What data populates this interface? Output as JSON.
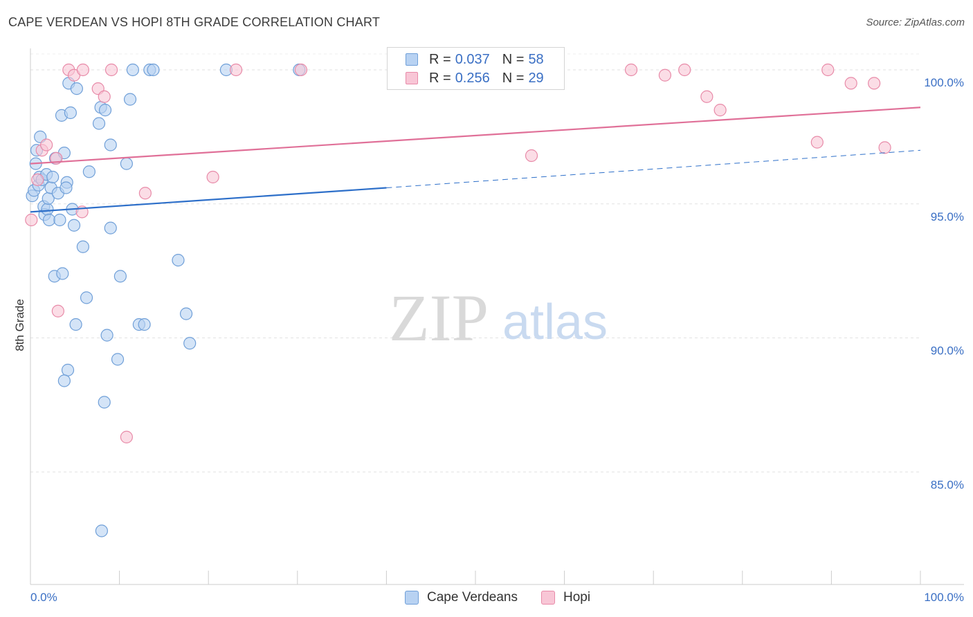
{
  "title": "CAPE VERDEAN VS HOPI 8TH GRADE CORRELATION CHART",
  "source": "Source: ZipAtlas.com",
  "watermark": {
    "zip": "ZIP",
    "atlas": "atlas"
  },
  "legend": {
    "rows": [
      {
        "r_label": "R =",
        "r_value": "0.037",
        "n_label": "N =",
        "n_value": "58",
        "fill": "#b8d2f2",
        "stroke": "#6f9fd8"
      },
      {
        "r_label": "R =",
        "r_value": "0.256",
        "n_label": "N =",
        "n_value": "29",
        "fill": "#f8c6d6",
        "stroke": "#e88aa8"
      }
    ]
  },
  "bottom_legend": [
    {
      "label": "Cape Verdeans",
      "fill": "#b8d2f2",
      "stroke": "#6f9fd8"
    },
    {
      "label": "Hopi",
      "fill": "#f8c6d6",
      "stroke": "#e88aa8"
    }
  ],
  "chart_data": {
    "type": "scatter",
    "title": "CAPE VERDEAN VS HOPI 8TH GRADE CORRELATION CHART",
    "xlabel": "",
    "ylabel": "8th Grade",
    "xlim": [
      0,
      100
    ],
    "ylim": [
      80.8,
      100.8
    ],
    "x_tick_labels": [
      "0.0%",
      "100.0%"
    ],
    "y_ticks": [
      {
        "value": 100,
        "label": "100.0%"
      },
      {
        "value": 95,
        "label": "95.0%"
      },
      {
        "value": 90,
        "label": "90.0%"
      },
      {
        "value": 85,
        "label": "85.0%"
      }
    ],
    "grid": true,
    "series": [
      {
        "name": "Cape Verdeans",
        "color": "#6f9fd8",
        "fill": "#b8d2f2",
        "trend": {
          "x0": 0,
          "y0": 94.7,
          "x1": 40,
          "y1": 95.6,
          "dash_to_x": 100,
          "dash_to_y": 97.0,
          "color": "#2d6fc9"
        },
        "points": [
          [
            0.2,
            95.3
          ],
          [
            0.4,
            95.5
          ],
          [
            0.6,
            96.5
          ],
          [
            0.7,
            97.0
          ],
          [
            0.9,
            95.7
          ],
          [
            1.0,
            96.0
          ],
          [
            1.1,
            97.5
          ],
          [
            1.3,
            95.9
          ],
          [
            1.5,
            94.9
          ],
          [
            1.6,
            94.6
          ],
          [
            1.8,
            96.1
          ],
          [
            1.9,
            94.8
          ],
          [
            2.0,
            95.2
          ],
          [
            2.1,
            94.4
          ],
          [
            2.3,
            95.6
          ],
          [
            2.5,
            96.0
          ],
          [
            2.8,
            96.7
          ],
          [
            3.1,
            95.4
          ],
          [
            3.3,
            94.4
          ],
          [
            3.5,
            98.3
          ],
          [
            3.8,
            96.9
          ],
          [
            4.1,
            95.8
          ],
          [
            4.3,
            99.5
          ],
          [
            4.5,
            98.4
          ],
          [
            4.7,
            94.8
          ],
          [
            4.9,
            94.2
          ],
          [
            5.2,
            99.3
          ],
          [
            5.9,
            93.4
          ],
          [
            6.3,
            91.5
          ],
          [
            6.6,
            96.2
          ],
          [
            7.7,
            98.0
          ],
          [
            7.9,
            98.6
          ],
          [
            8.4,
            98.5
          ],
          [
            8.6,
            90.1
          ],
          [
            9.0,
            94.1
          ],
          [
            9.0,
            97.2
          ],
          [
            9.8,
            89.2
          ],
          [
            10.1,
            92.3
          ],
          [
            10.8,
            96.5
          ],
          [
            11.2,
            98.9
          ],
          [
            11.5,
            100.0
          ],
          [
            12.2,
            90.5
          ],
          [
            12.8,
            90.5
          ],
          [
            13.4,
            100.0
          ],
          [
            13.8,
            100.0
          ],
          [
            16.6,
            92.9
          ],
          [
            17.5,
            90.9
          ],
          [
            17.9,
            89.8
          ],
          [
            22.0,
            100.0
          ],
          [
            30.2,
            100.0
          ],
          [
            2.7,
            92.3
          ],
          [
            3.6,
            92.4
          ],
          [
            5.1,
            90.5
          ],
          [
            4.2,
            88.8
          ],
          [
            3.8,
            88.4
          ],
          [
            8.3,
            87.6
          ],
          [
            8.0,
            82.8
          ],
          [
            4.0,
            95.6
          ]
        ]
      },
      {
        "name": "Hopi",
        "color": "#e88aa8",
        "fill": "#f8c6d6",
        "trend": {
          "x0": 0,
          "y0": 96.5,
          "x1": 100,
          "y1": 98.6,
          "color": "#e07098"
        },
        "points": [
          [
            0.1,
            94.4
          ],
          [
            0.8,
            95.9
          ],
          [
            1.3,
            97.0
          ],
          [
            1.8,
            97.2
          ],
          [
            2.9,
            96.7
          ],
          [
            3.1,
            91.0
          ],
          [
            5.8,
            94.7
          ],
          [
            4.3,
            100.0
          ],
          [
            4.9,
            99.8
          ],
          [
            5.9,
            100.0
          ],
          [
            7.6,
            99.3
          ],
          [
            8.3,
            99.0
          ],
          [
            9.1,
            100.0
          ],
          [
            10.8,
            86.3
          ],
          [
            12.9,
            95.4
          ],
          [
            20.5,
            96.0
          ],
          [
            23.1,
            100.0
          ],
          [
            30.4,
            100.0
          ],
          [
            56.3,
            96.8
          ],
          [
            67.5,
            100.0
          ],
          [
            71.3,
            99.8
          ],
          [
            73.5,
            100.0
          ],
          [
            76.0,
            99.0
          ],
          [
            77.5,
            98.5
          ],
          [
            88.4,
            97.3
          ],
          [
            89.6,
            100.0
          ],
          [
            92.2,
            99.5
          ],
          [
            94.8,
            99.5
          ],
          [
            96.0,
            97.1
          ]
        ]
      }
    ]
  }
}
